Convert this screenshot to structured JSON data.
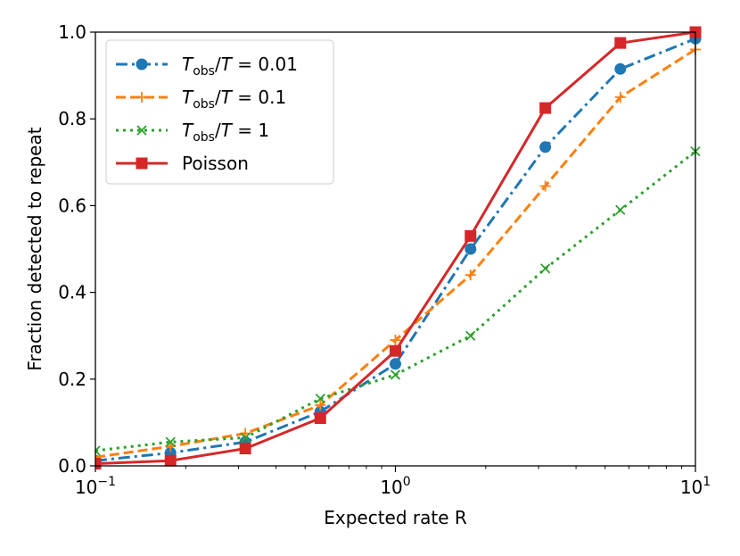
{
  "chart_data": {
    "type": "line",
    "title": "",
    "xlabel": "Expected rate R",
    "ylabel": "Fraction detected to repeat",
    "xscale": "log",
    "xlim": [
      0.1,
      10
    ],
    "ylim": [
      0.0,
      1.0
    ],
    "x_ticks": [
      0.1,
      1,
      10
    ],
    "x_tick_labels": [
      {
        "base": "10",
        "exp": "−1"
      },
      {
        "base": "10",
        "exp": "0"
      },
      {
        "base": "10",
        "exp": "1"
      }
    ],
    "y_ticks": [
      0.0,
      0.2,
      0.4,
      0.6,
      0.8,
      1.0
    ],
    "y_tick_labels": [
      "0.0",
      "0.2",
      "0.4",
      "0.6",
      "0.8",
      "1.0"
    ],
    "legend_position": "top-left",
    "grid": false,
    "x": [
      0.1,
      0.178,
      0.316,
      0.562,
      1.0,
      1.78,
      3.16,
      5.62,
      10.0
    ],
    "series": [
      {
        "name": "T_obs/T = 0.01",
        "legend": {
          "italic_lead": "T",
          "sub": "obs",
          "rest": "/",
          "italic_mid": "T",
          "tail": " = 0.01"
        },
        "color": "#1f77b4",
        "marker": "circle",
        "linestyle": "dashdot",
        "values": [
          0.012,
          0.03,
          0.055,
          0.125,
          0.235,
          0.5,
          0.735,
          0.915,
          0.985
        ]
      },
      {
        "name": "T_obs/T = 0.1",
        "legend": {
          "italic_lead": "T",
          "sub": "obs",
          "rest": "/",
          "italic_mid": "T",
          "tail": " = 0.1"
        },
        "color": "#ff7f0e",
        "marker": "plus",
        "linestyle": "dashed",
        "values": [
          0.02,
          0.045,
          0.075,
          0.14,
          0.29,
          0.44,
          0.645,
          0.85,
          0.96
        ]
      },
      {
        "name": "T_obs/T = 1",
        "legend": {
          "italic_lead": "T",
          "sub": "obs",
          "rest": "/",
          "italic_mid": "T",
          "tail": " = 1"
        },
        "color": "#2ca02c",
        "marker": "x",
        "linestyle": "dotted",
        "values": [
          0.035,
          0.055,
          0.065,
          0.155,
          0.21,
          0.3,
          0.455,
          0.59,
          0.725
        ]
      },
      {
        "name": "Poisson",
        "legend": {
          "plain": "Poisson"
        },
        "color": "#d62728",
        "marker": "square",
        "linestyle": "solid",
        "values": [
          0.005,
          0.012,
          0.04,
          0.11,
          0.265,
          0.53,
          0.825,
          0.975,
          1.0
        ]
      }
    ]
  }
}
